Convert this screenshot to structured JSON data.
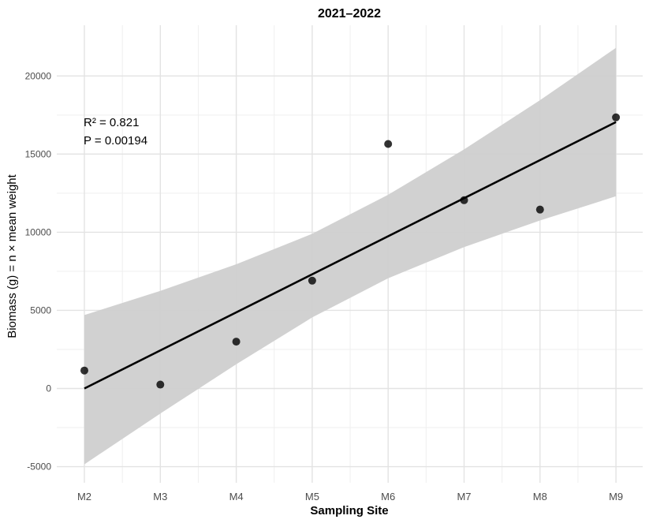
{
  "chart_data": {
    "type": "scatter",
    "title": "2021–2022",
    "xlabel": "Sampling Site",
    "ylabel": "Biomass (g) = n × mean weight",
    "categories": [
      "M2",
      "M3",
      "M4",
      "M5",
      "M6",
      "M7",
      "M8",
      "M9"
    ],
    "ylim": [
      -6000,
      23000
    ],
    "yticks": [
      -5000,
      0,
      5000,
      10000,
      15000,
      20000
    ],
    "ytick_labels": [
      "-5000",
      "0",
      "5000",
      "10000",
      "15000",
      "20000"
    ],
    "grid": true,
    "legend": "none",
    "series": [
      {
        "type": "points",
        "values": [
          1150,
          250,
          3000,
          6900,
          15650,
          12050,
          11450,
          17350
        ]
      },
      {
        "type": "regression_line",
        "start": 0,
        "end": 17050
      },
      {
        "type": "confidence_band",
        "upper": [
          4700,
          6250,
          7950,
          9900,
          12400,
          15300,
          18450,
          21800
        ],
        "lower": [
          -4850,
          -1600,
          1550,
          4550,
          7050,
          9050,
          10750,
          12300
        ]
      }
    ],
    "annotations": [
      "R² = 0.821",
      "P = 0.00194"
    ],
    "colors": {
      "points": "#000000",
      "line": "#000000",
      "band": "#cfcfcf",
      "grid_major": "#e3e3e3",
      "grid_minor": "#efefef"
    }
  }
}
